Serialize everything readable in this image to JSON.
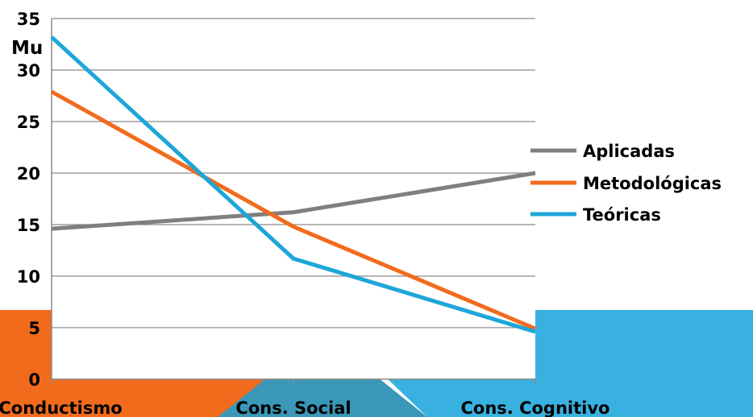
{
  "chart_data": {
    "type": "line",
    "ylabel": "Mu",
    "categories": [
      "Conductismo",
      "Cons. Social",
      "Cons. Cognitivo"
    ],
    "ylim": [
      0,
      35
    ],
    "yticks": [
      0,
      5,
      10,
      15,
      20,
      25,
      30,
      35
    ],
    "grid": true,
    "legend_position": "right",
    "series": [
      {
        "name": "Aplicadas",
        "color": "#7f7f7f",
        "values": [
          14.6,
          16.2,
          20
        ]
      },
      {
        "name": "Metodológicas",
        "color": "#f26b1d",
        "values": [
          27.9,
          14.8,
          4.9
        ]
      },
      {
        "name": "Teóricas",
        "color": "#1ea6d9",
        "values": [
          33.2,
          11.7,
          4.6
        ]
      }
    ]
  },
  "background": {
    "colors": [
      "#f26b1d",
      "#3a97b8",
      "#38b1e0"
    ]
  }
}
